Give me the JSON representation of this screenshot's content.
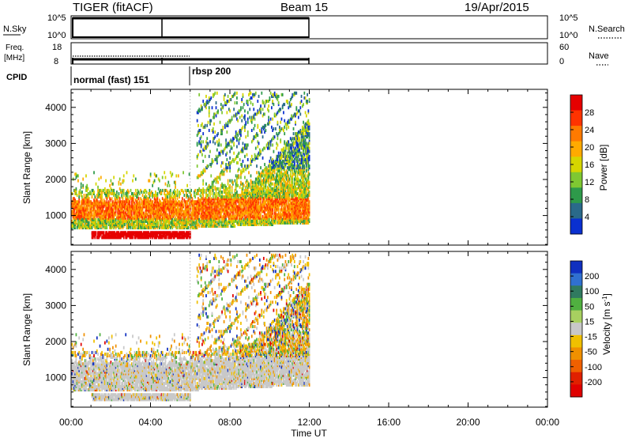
{
  "header": {
    "site": "TIGER (fitACF)",
    "beam": "Beam 15",
    "date": "19/Apr/2015"
  },
  "status_panels": {
    "nsky": {
      "label": "N.Sky",
      "ticks": [
        "10^5",
        "10^0"
      ],
      "right_ticks": [
        "10^5",
        "10^0"
      ],
      "right_label": "N.Search"
    },
    "freq": {
      "label_line1": "Freq.",
      "label_line2": "[MHz]",
      "ticks": [
        "18",
        "8"
      ],
      "right_ticks": [
        "60",
        "0"
      ],
      "right_label": "Nave"
    },
    "cpid": {
      "label": "CPID",
      "modes": [
        {
          "name": "normal (fast) 151",
          "start": "00:00"
        },
        {
          "name": "rbsp 200",
          "start": "06:00"
        }
      ]
    }
  },
  "chart_data": [
    {
      "type": "heatmap",
      "name": "power",
      "xlabel": "",
      "ylabel": "Slant Range [km]",
      "x_ticks": [
        "00:00",
        "04:00",
        "08:00",
        "12:00",
        "16:00",
        "20:00",
        "00:00"
      ],
      "xlim_hours": [
        0,
        24
      ],
      "ylim": [
        180,
        4500
      ],
      "y_ticks": [
        1000,
        2000,
        3000,
        4000
      ],
      "colorbar": {
        "label": "Power [dB]",
        "ticks": [
          "28",
          "24",
          "20",
          "16",
          "12",
          "8",
          "4"
        ],
        "colors": [
          "#e60000",
          "#ff3300",
          "#ff7a00",
          "#ffaa00",
          "#d6d600",
          "#7fc832",
          "#2e9a4a",
          "#2a6a8a",
          "#0a30d0"
        ]
      },
      "data_extent_hours": [
        0,
        12
      ]
    },
    {
      "type": "heatmap",
      "name": "velocity",
      "xlabel": "Time UT",
      "ylabel": "Slant Range [km]",
      "x_ticks": [
        "00:00",
        "04:00",
        "08:00",
        "12:00",
        "16:00",
        "20:00",
        "00:00"
      ],
      "xlim_hours": [
        0,
        24
      ],
      "ylim": [
        180,
        4500
      ],
      "y_ticks": [
        1000,
        2000,
        3000,
        4000
      ],
      "colorbar": {
        "label": "Velocity [m s^-1]",
        "ticks": [
          "200",
          "100",
          "50",
          "15",
          "-15",
          "-50",
          "-100",
          "-200"
        ],
        "colors": [
          "#1030c0",
          "#3070d0",
          "#307a60",
          "#50b040",
          "#a8d060",
          "#c8c8c8",
          "#f0c000",
          "#f09000",
          "#f06000",
          "#e02000",
          "#e00000"
        ]
      },
      "data_extent_hours": [
        0,
        12
      ]
    }
  ]
}
